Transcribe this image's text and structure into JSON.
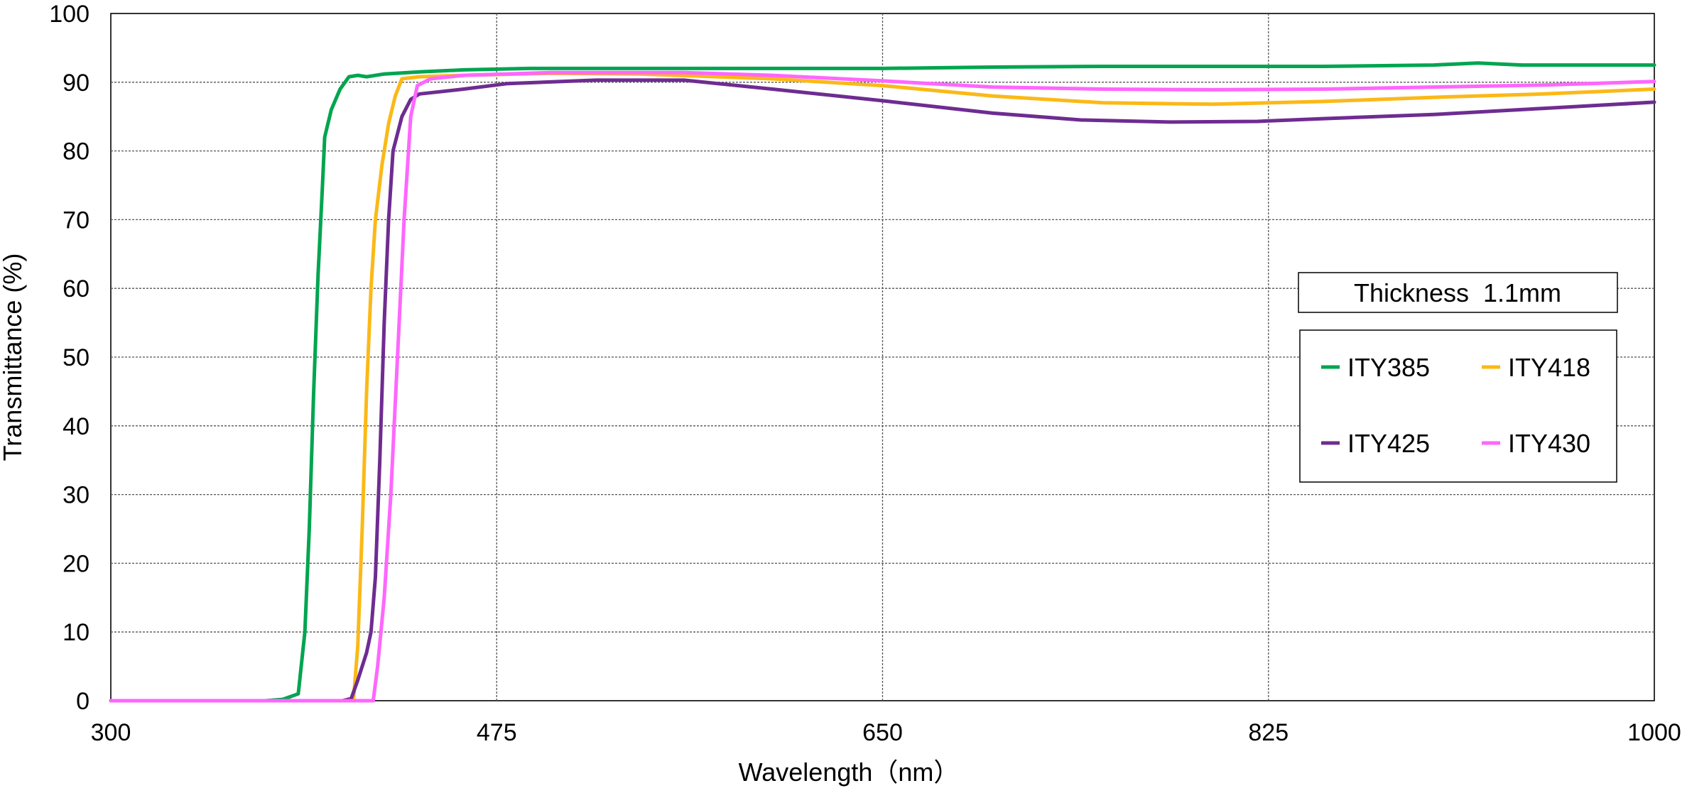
{
  "chart_data": {
    "type": "line",
    "title": "",
    "xlabel": "Wavelength（nm）",
    "ylabel": "Transmittance (%)",
    "xlim": [
      300,
      1000
    ],
    "ylim": [
      0,
      100
    ],
    "x_ticks": [
      300,
      475,
      650,
      825,
      1000
    ],
    "y_ticks": [
      0,
      10,
      20,
      30,
      40,
      50,
      60,
      70,
      80,
      90,
      100
    ],
    "grid": true,
    "legend_placement": "right",
    "annotation": "Thickness  1.1mm",
    "series": [
      {
        "name": "ITY385",
        "color": "#00a550",
        "points": [
          [
            300,
            0
          ],
          [
            370,
            0
          ],
          [
            378,
            0.2
          ],
          [
            385,
            1
          ],
          [
            388,
            10
          ],
          [
            390,
            25
          ],
          [
            392,
            45
          ],
          [
            394,
            62
          ],
          [
            396,
            75
          ],
          [
            397,
            82
          ],
          [
            400,
            86
          ],
          [
            404,
            89
          ],
          [
            408,
            90.8
          ],
          [
            412,
            91
          ],
          [
            416,
            90.8
          ],
          [
            424,
            91.2
          ],
          [
            440,
            91.5
          ],
          [
            460,
            91.8
          ],
          [
            490,
            92
          ],
          [
            530,
            92
          ],
          [
            600,
            92
          ],
          [
            650,
            92
          ],
          [
            700,
            92.2
          ],
          [
            750,
            92.3
          ],
          [
            800,
            92.3
          ],
          [
            850,
            92.3
          ],
          [
            900,
            92.5
          ],
          [
            920,
            92.8
          ],
          [
            940,
            92.5
          ],
          [
            1000,
            92.5
          ]
        ]
      },
      {
        "name": "ITY418",
        "color": "#fbb917",
        "points": [
          [
            300,
            0
          ],
          [
            410,
            0
          ],
          [
            412,
            8
          ],
          [
            414,
            25
          ],
          [
            416,
            45
          ],
          [
            418,
            60
          ],
          [
            420,
            70
          ],
          [
            423,
            78
          ],
          [
            426,
            84
          ],
          [
            429,
            88
          ],
          [
            432,
            90.5
          ],
          [
            440,
            90.8
          ],
          [
            460,
            91
          ],
          [
            500,
            91.3
          ],
          [
            540,
            91.2
          ],
          [
            600,
            90.5
          ],
          [
            650,
            89.5
          ],
          [
            700,
            88
          ],
          [
            750,
            87
          ],
          [
            800,
            86.8
          ],
          [
            850,
            87.2
          ],
          [
            900,
            87.8
          ],
          [
            950,
            88.3
          ],
          [
            1000,
            89
          ]
        ]
      },
      {
        "name": "ITY425",
        "color": "#6e2c91",
        "points": [
          [
            300,
            0
          ],
          [
            405,
            0
          ],
          [
            409,
            0.3
          ],
          [
            412,
            3
          ],
          [
            416,
            7
          ],
          [
            418,
            10
          ],
          [
            420,
            18
          ],
          [
            422,
            35
          ],
          [
            424,
            55
          ],
          [
            426,
            70
          ],
          [
            428,
            80
          ],
          [
            432,
            85
          ],
          [
            436,
            87.5
          ],
          [
            440,
            88.3
          ],
          [
            446,
            88.5
          ],
          [
            460,
            89
          ],
          [
            480,
            89.8
          ],
          [
            520,
            90.3
          ],
          [
            560,
            90.3
          ],
          [
            600,
            89
          ],
          [
            650,
            87.3
          ],
          [
            700,
            85.5
          ],
          [
            740,
            84.5
          ],
          [
            780,
            84.2
          ],
          [
            820,
            84.3
          ],
          [
            850,
            84.7
          ],
          [
            900,
            85.3
          ],
          [
            950,
            86.2
          ],
          [
            1000,
            87.1
          ]
        ]
      },
      {
        "name": "ITY430",
        "color": "#ff66ff",
        "points": [
          [
            300,
            0
          ],
          [
            419,
            0
          ],
          [
            421,
            5
          ],
          [
            424,
            15
          ],
          [
            427,
            30
          ],
          [
            430,
            50
          ],
          [
            433,
            70
          ],
          [
            436,
            85
          ],
          [
            439,
            89.5
          ],
          [
            445,
            90.5
          ],
          [
            460,
            91
          ],
          [
            500,
            91.4
          ],
          [
            560,
            91.4
          ],
          [
            600,
            91
          ],
          [
            650,
            90.2
          ],
          [
            700,
            89.3
          ],
          [
            750,
            89
          ],
          [
            800,
            88.9
          ],
          [
            850,
            89
          ],
          [
            900,
            89.3
          ],
          [
            950,
            89.6
          ],
          [
            1000,
            90.1
          ]
        ]
      }
    ]
  }
}
